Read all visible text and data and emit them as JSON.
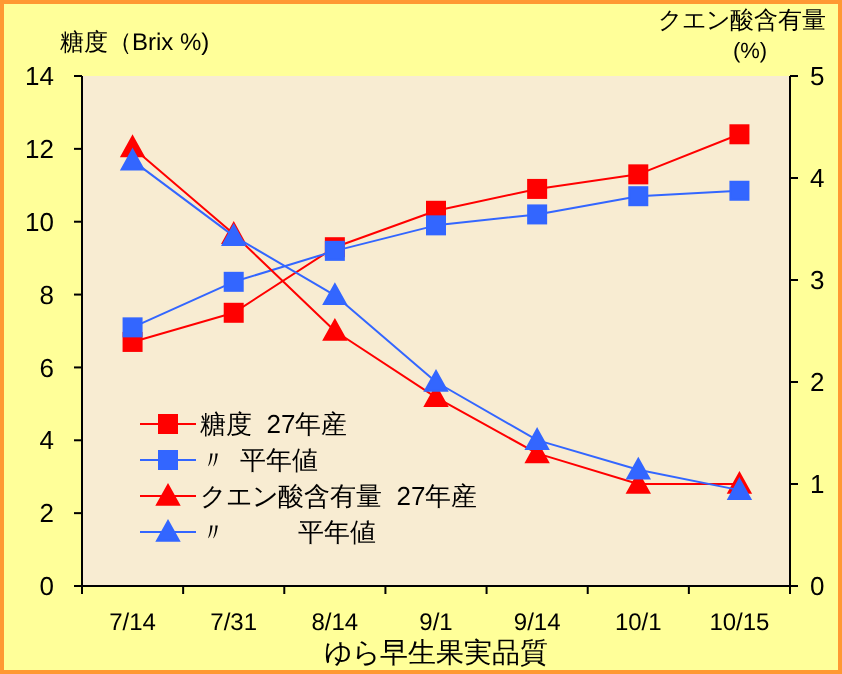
{
  "chart_data": {
    "type": "line",
    "xlabel": "ゆら早生果実品質",
    "ylabel": "糖度（Brix %)",
    "y2label": "クエン酸含有量\n(%)",
    "categories": [
      "7/14",
      "7/31",
      "8/14",
      "9/1",
      "9/14",
      "10/1",
      "10/15"
    ],
    "ylim": [
      0,
      14
    ],
    "yticks": [
      0,
      2,
      4,
      6,
      8,
      10,
      12,
      14
    ],
    "y2lim": [
      0,
      5
    ],
    "y2ticks": [
      0,
      1,
      2,
      3,
      4,
      5
    ],
    "grid": false,
    "legend": "bottom left",
    "line_style": "solid",
    "series": [
      {
        "name": "糖度  27年産",
        "color": "#ff0000",
        "marker": "square",
        "values": [
          6.7,
          7.5,
          9.3,
          10.3,
          10.9,
          11.3,
          12.4
        ]
      },
      {
        "name": "〃  平年値",
        "color": "#3366ff",
        "marker": "square",
        "values": [
          7.1,
          8.35,
          9.2,
          9.9,
          10.2,
          10.7,
          10.85
        ]
      },
      {
        "name": "クエン酸含有量  27年産",
        "color": "#ff0000",
        "marker": "triangle",
        "axis": "y2",
        "values": [
          4.3,
          3.45,
          2.5,
          1.85,
          1.3,
          1.0,
          1.0
        ]
      },
      {
        "name": "〃          平年値",
        "color": "#3366ff",
        "marker": "triangle",
        "axis": "y2",
        "values": [
          4.17,
          3.43,
          2.85,
          2.0,
          1.43,
          1.14,
          0.94
        ]
      }
    ]
  }
}
